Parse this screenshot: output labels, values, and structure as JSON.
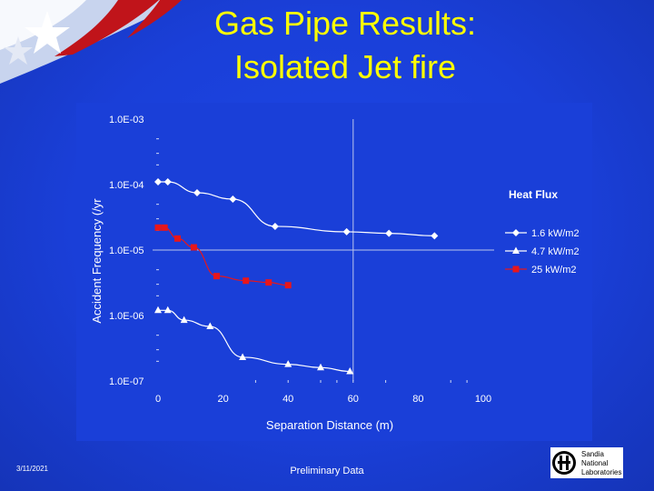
{
  "slide": {
    "title_line1": "Gas Pipe Results:",
    "title_line2": "Isolated Jet fire",
    "date": "3/11/2021",
    "note": "Preliminary Data",
    "logo_text": [
      "Sandia",
      "National",
      "Laboratories"
    ]
  },
  "colors": {
    "background": "#1a3fd8",
    "title": "#ffff00",
    "text": "#ffffff",
    "series_white": "#ffffff",
    "series_red": "#e8161b"
  },
  "chart_data": {
    "type": "scatter",
    "xlabel": "Separation Distance (m)",
    "ylabel": "Accident Frequency (/yr",
    "xlim": [
      0,
      100
    ],
    "ylim": [
      1e-07,
      0.001
    ],
    "yscale": "log",
    "xticks": [
      "0",
      "20",
      "40",
      "60",
      "80",
      "100"
    ],
    "yticks": [
      "1.0E-03",
      "1.0E-04",
      "1.0E-05",
      "1.0E-06",
      "1.0E-07"
    ],
    "reference_lines": {
      "x": 60,
      "y": 1e-05
    },
    "legend_title": "Heat Flux",
    "legend_position": "right",
    "series": [
      {
        "name": "1.6 kW/m2",
        "marker": "diamond",
        "color": "#ffffff",
        "x": [
          0,
          3,
          12,
          23,
          36,
          58,
          71,
          85
        ],
        "y": [
          0.00011,
          0.00011,
          7.5e-05,
          6e-05,
          2.3e-05,
          1.9e-05,
          1.8e-05,
          1.65e-05
        ]
      },
      {
        "name": "4.7 kW/m2",
        "marker": "triangle",
        "color": "#ffffff",
        "x": [
          0,
          3,
          8,
          16,
          26,
          40,
          50,
          59
        ],
        "y": [
          1.2e-06,
          1.2e-06,
          8.5e-07,
          6.8e-07,
          2.3e-07,
          1.8e-07,
          1.6e-07,
          1.4e-07
        ]
      },
      {
        "name": "25 kW/m2",
        "marker": "square",
        "color": "#e8161b",
        "x": [
          0,
          2,
          6,
          11,
          18,
          27,
          34,
          40
        ],
        "y": [
          2.2e-05,
          2.2e-05,
          1.5e-05,
          1.1e-05,
          4e-06,
          3.4e-06,
          3.2e-06,
          2.9e-06
        ]
      }
    ]
  }
}
